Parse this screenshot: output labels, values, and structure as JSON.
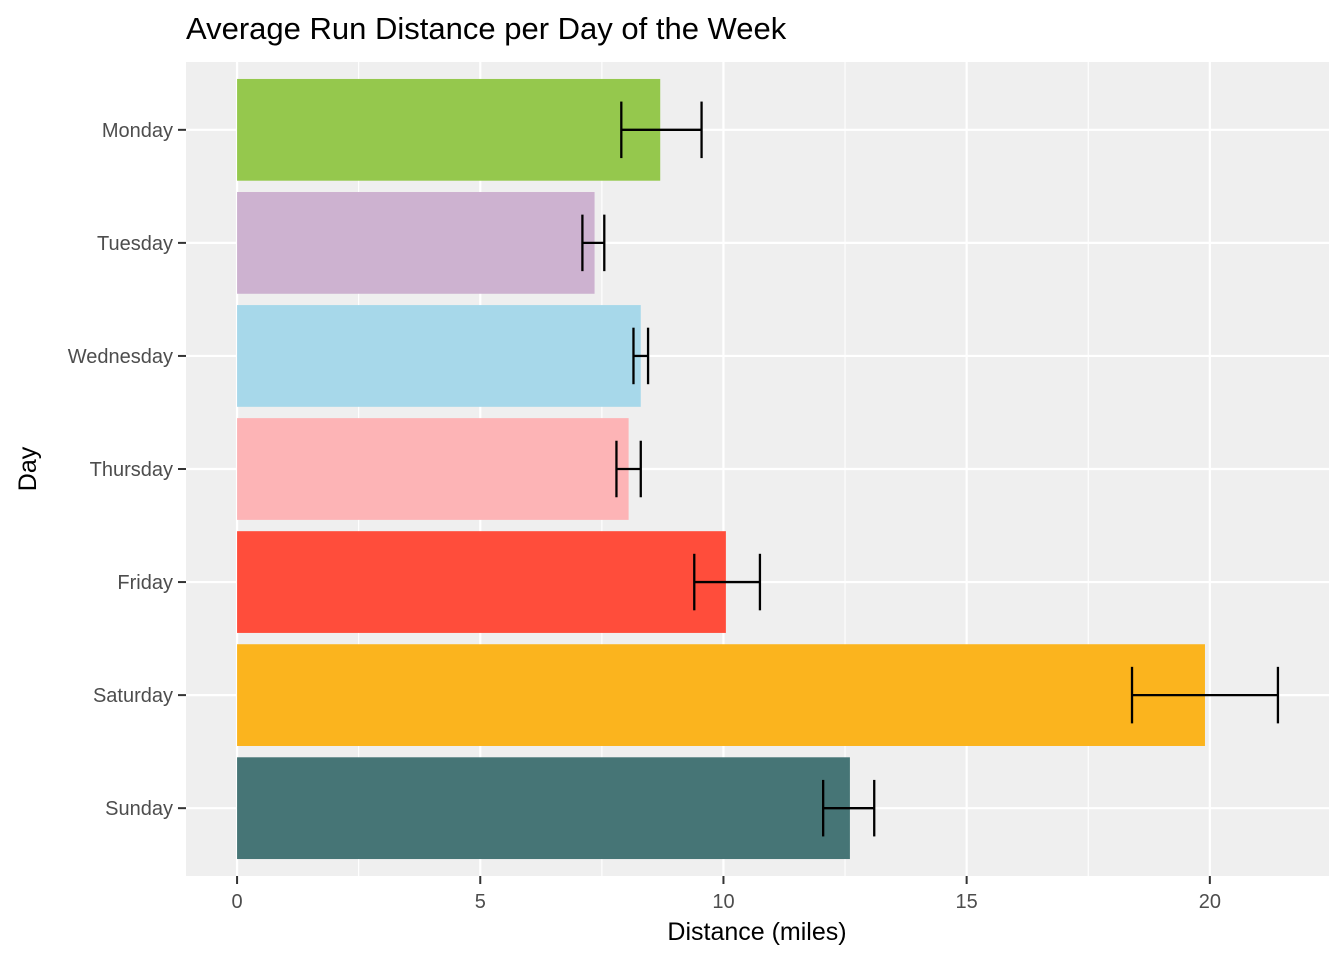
{
  "chart_data": {
    "type": "bar",
    "orientation": "horizontal",
    "title": "Average Run Distance per Day of the Week",
    "xlabel": "Distance (miles)",
    "ylabel": "Day",
    "categories": [
      "Monday",
      "Tuesday",
      "Wednesday",
      "Thursday",
      "Friday",
      "Saturday",
      "Sunday"
    ],
    "values": [
      8.7,
      7.35,
      8.3,
      8.05,
      10.05,
      19.9,
      12.6
    ],
    "error_low": [
      7.9,
      7.1,
      8.15,
      7.8,
      9.4,
      18.4,
      12.05
    ],
    "error_high": [
      9.55,
      7.55,
      8.45,
      8.3,
      10.75,
      21.4,
      13.1
    ],
    "colors": [
      "#95C84D",
      "#CDB2D0",
      "#A7D8EA",
      "#FDB4B6",
      "#FF4D3B",
      "#FBB41E",
      "#467576"
    ],
    "xlim": [
      -1.05,
      22.45
    ],
    "xticks": [
      0,
      5,
      10,
      15,
      20
    ],
    "xtick_labels": [
      "0",
      "5",
      "10",
      "15",
      "20"
    ],
    "grid": true,
    "legend": "none",
    "panel_background": "#EFEFEF",
    "grid_color": "#FFFFFF",
    "errorbar_color": "#000000"
  }
}
